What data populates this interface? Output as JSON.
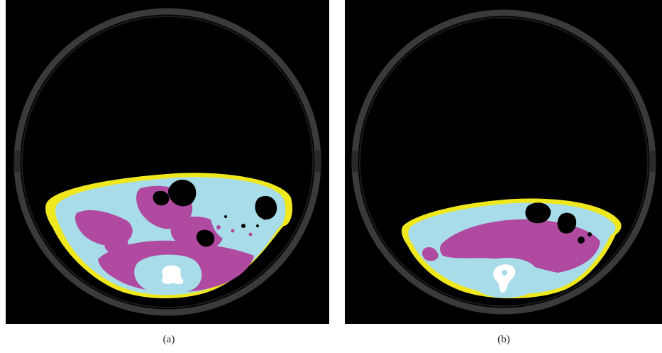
{
  "figure": {
    "panels": [
      {
        "id": "a",
        "caption": "(a)"
      },
      {
        "id": "b",
        "caption": "(b)"
      }
    ],
    "colors": {
      "background": "#000000",
      "ring": "#3a3a3a",
      "ring_inner": "#1c1c1c",
      "outer_layer": "#f0e81e",
      "tissue_light": "#a8dce8",
      "tissue_magenta": "#b04aa0",
      "bone": "#ffffff",
      "cavity": "#000000"
    }
  }
}
